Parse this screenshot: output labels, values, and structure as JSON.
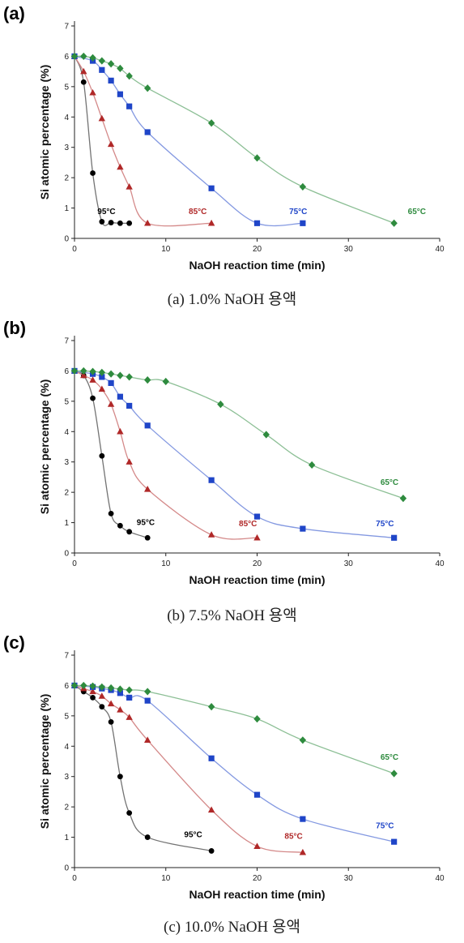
{
  "chart_data": [
    {
      "type": "scatter",
      "panel_label": "(a)",
      "caption": "(a) 1.0% NaOH 용액",
      "xlabel": "NaOH reaction time (min)",
      "ylabel": "Si atomic percentage (%)",
      "xlim": [
        0,
        40
      ],
      "ylim": [
        0,
        7
      ],
      "xticks": [
        0,
        10,
        20,
        30,
        40
      ],
      "yticks": [
        0,
        1,
        2,
        3,
        4,
        5,
        6,
        7
      ],
      "series": [
        {
          "name": "95°C",
          "color": "#000000",
          "marker": "circle",
          "x": [
            0,
            1,
            2,
            3,
            4,
            5,
            6
          ],
          "y": [
            6.0,
            5.15,
            2.15,
            0.55,
            0.52,
            0.5,
            0.5
          ],
          "label_at": [
            3.5,
            0.8
          ]
        },
        {
          "name": "85°C",
          "color": "#b02828",
          "marker": "triangle",
          "x": [
            0,
            1,
            2,
            3,
            4,
            5,
            6,
            8,
            15
          ],
          "y": [
            6.0,
            5.5,
            4.8,
            3.95,
            3.1,
            2.35,
            1.7,
            0.5,
            0.5
          ],
          "label_at": [
            13.5,
            0.8
          ]
        },
        {
          "name": "75°C",
          "color": "#1f45c8",
          "marker": "square",
          "x": [
            0,
            2,
            3,
            4,
            5,
            6,
            8,
            15,
            20,
            25
          ],
          "y": [
            6.0,
            5.85,
            5.55,
            5.2,
            4.75,
            4.35,
            3.5,
            1.65,
            0.5,
            0.5
          ],
          "label_at": [
            24.5,
            0.8
          ]
        },
        {
          "name": "65°C",
          "color": "#2e8b3e",
          "marker": "diamond",
          "x": [
            0,
            1,
            2,
            3,
            4,
            5,
            6,
            8,
            15,
            20,
            25,
            35
          ],
          "y": [
            6.0,
            6.0,
            5.95,
            5.85,
            5.75,
            5.6,
            5.35,
            4.95,
            3.8,
            2.65,
            1.7,
            0.5
          ],
          "label_at": [
            37.5,
            0.8
          ]
        }
      ]
    },
    {
      "type": "scatter",
      "panel_label": "(b)",
      "caption": "(b) 7.5% NaOH 용액",
      "xlabel": "NaOH reaction time (min)",
      "ylabel": "Si atomic percentage (%)",
      "xlim": [
        0,
        40
      ],
      "ylim": [
        0,
        7
      ],
      "xticks": [
        0,
        10,
        20,
        30,
        40
      ],
      "yticks": [
        0,
        1,
        2,
        3,
        4,
        5,
        6,
        7
      ],
      "series": [
        {
          "name": "95°C",
          "color": "#000000",
          "marker": "circle",
          "x": [
            0,
            1,
            2,
            3,
            4,
            5,
            6,
            8
          ],
          "y": [
            6.0,
            5.85,
            5.1,
            3.2,
            1.3,
            0.9,
            0.7,
            0.5
          ],
          "label_at": [
            7.8,
            0.92
          ]
        },
        {
          "name": "85°C",
          "color": "#b02828",
          "marker": "triangle",
          "x": [
            0,
            1,
            2,
            3,
            4,
            5,
            6,
            8,
            15,
            20
          ],
          "y": [
            6.0,
            5.85,
            5.7,
            5.4,
            4.9,
            4.0,
            3.0,
            2.1,
            0.6,
            0.5
          ],
          "label_at": [
            19.0,
            0.88
          ]
        },
        {
          "name": "75°C",
          "color": "#1f45c8",
          "marker": "square",
          "x": [
            0,
            2,
            3,
            4,
            5,
            6,
            8,
            15,
            20,
            25,
            35
          ],
          "y": [
            6.0,
            5.9,
            5.8,
            5.6,
            5.15,
            4.85,
            4.2,
            2.4,
            1.2,
            0.8,
            0.5
          ],
          "label_at": [
            34.0,
            0.88
          ]
        },
        {
          "name": "65°C",
          "color": "#2e8b3e",
          "marker": "diamond",
          "x": [
            0,
            1,
            2,
            3,
            4,
            5,
            6,
            8,
            10,
            16,
            21,
            26,
            36
          ],
          "y": [
            6.0,
            6.0,
            5.98,
            5.95,
            5.9,
            5.85,
            5.8,
            5.7,
            5.65,
            4.9,
            3.9,
            2.9,
            1.8
          ],
          "label_at": [
            34.5,
            2.25
          ]
        }
      ]
    },
    {
      "type": "scatter",
      "panel_label": "(c)",
      "caption": "(c) 10.0% NaOH 용액",
      "xlabel": "NaOH reaction time (min)",
      "ylabel": "Si atomic percentage (%)",
      "xlim": [
        0,
        40
      ],
      "ylim": [
        0,
        7
      ],
      "xticks": [
        0,
        10,
        20,
        30,
        40
      ],
      "yticks": [
        0,
        1,
        2,
        3,
        4,
        5,
        6,
        7
      ],
      "series": [
        {
          "name": "95°C",
          "color": "#000000",
          "marker": "circle",
          "x": [
            0,
            1,
            2,
            3,
            4,
            5,
            6,
            8,
            15
          ],
          "y": [
            6.0,
            5.8,
            5.6,
            5.3,
            4.8,
            3.0,
            1.8,
            1.0,
            0.55
          ],
          "label_at": [
            13.0,
            1.0
          ]
        },
        {
          "name": "85°C",
          "color": "#b02828",
          "marker": "triangle",
          "x": [
            0,
            1,
            2,
            3,
            4,
            5,
            6,
            8,
            15,
            20,
            25
          ],
          "y": [
            6.0,
            5.9,
            5.8,
            5.65,
            5.4,
            5.2,
            4.95,
            4.2,
            1.9,
            0.7,
            0.5
          ],
          "label_at": [
            24.0,
            0.95
          ]
        },
        {
          "name": "75°C",
          "color": "#1f45c8",
          "marker": "square",
          "x": [
            0,
            2,
            3,
            4,
            5,
            6,
            8,
            15,
            20,
            25,
            35
          ],
          "y": [
            6.0,
            5.95,
            5.9,
            5.85,
            5.75,
            5.6,
            5.5,
            3.6,
            2.4,
            1.6,
            0.85
          ],
          "label_at": [
            34.0,
            1.3
          ]
        },
        {
          "name": "65°C",
          "color": "#2e8b3e",
          "marker": "diamond",
          "x": [
            0,
            1,
            2,
            3,
            4,
            5,
            6,
            8,
            15,
            20,
            25,
            35
          ],
          "y": [
            6.0,
            6.0,
            5.98,
            5.95,
            5.92,
            5.88,
            5.85,
            5.8,
            5.3,
            4.9,
            4.2,
            3.1
          ],
          "label_at": [
            34.5,
            3.55
          ]
        }
      ]
    }
  ]
}
